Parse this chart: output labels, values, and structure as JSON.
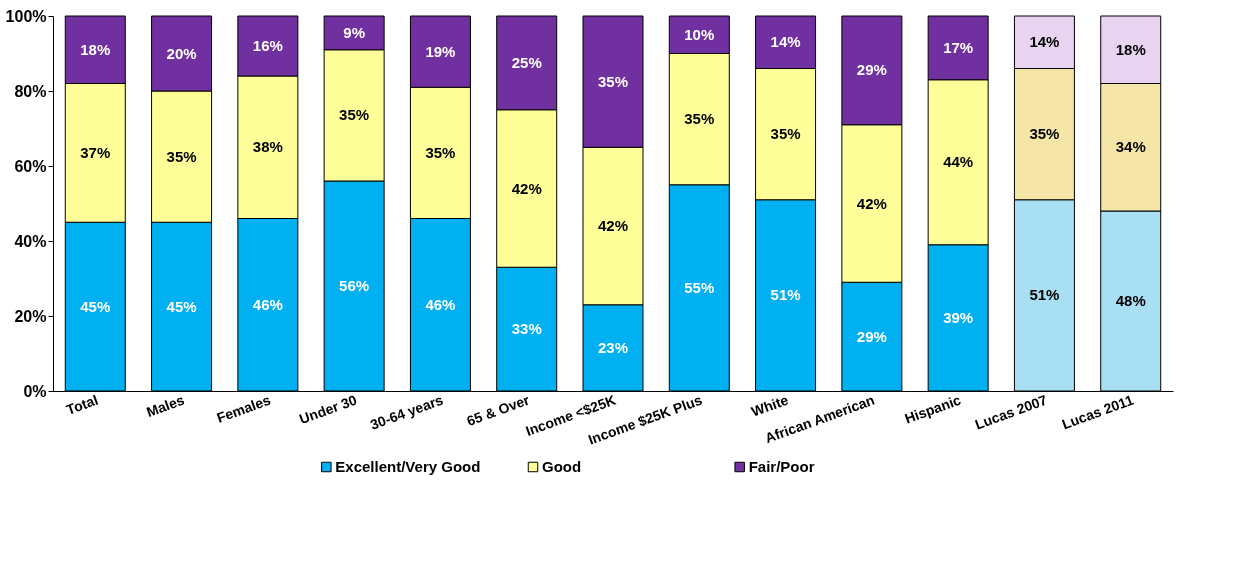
{
  "chart_data": {
    "type": "bar",
    "stacked": true,
    "grid": false,
    "legend": "bottom",
    "categories": [
      "Total",
      "Males",
      "Females",
      "Under 30",
      "30-64 years",
      "65 & Over",
      "Income <$25K",
      "Income $25K Plus",
      "White",
      "African American",
      "Hispanic",
      "Lucas 2007",
      "Lucas 2011"
    ],
    "ylim": [
      0,
      100
    ],
    "yticks": [
      {
        "value": 0,
        "label": "0%"
      },
      {
        "value": 20,
        "label": "20%"
      },
      {
        "value": 40,
        "label": "40%"
      },
      {
        "value": 60,
        "label": "60%"
      },
      {
        "value": 80,
        "label": "80%"
      },
      {
        "value": 100,
        "label": "100%"
      }
    ],
    "series": [
      {
        "name": "Excellent/Very Good",
        "color": "#00b0f0",
        "colors": [
          "#00b0f0",
          "#00b0f0",
          "#00b0f0",
          "#00b0f0",
          "#00b0f0",
          "#00b0f0",
          "#00b0f0",
          "#00b0f0",
          "#00b0f0",
          "#00b0f0",
          "#00b0f0",
          "#a8dff2",
          "#a8dff2"
        ],
        "values": [
          45,
          45,
          46,
          56,
          46,
          33,
          23,
          55,
          51,
          29,
          39,
          51,
          48
        ],
        "value_labels": [
          "45%",
          "45%",
          "46%",
          "56%",
          "46%",
          "33%",
          "23%",
          "55%",
          "51%",
          "29%",
          "39%",
          "51%",
          "48%"
        ]
      },
      {
        "name": "Good",
        "color": "#ffff99",
        "colors": [
          "#ffff99",
          "#ffff99",
          "#ffff99",
          "#ffff99",
          "#ffff99",
          "#ffff99",
          "#ffff99",
          "#ffff99",
          "#ffff99",
          "#ffff99",
          "#ffff99",
          "#f5e6a8",
          "#f5e6a8"
        ],
        "values": [
          37,
          35,
          38,
          35,
          35,
          42,
          42,
          35,
          35,
          42,
          44,
          35,
          34
        ],
        "value_labels": [
          "37%",
          "35%",
          "38%",
          "35%",
          "35%",
          "42%",
          "42%",
          "35%",
          "35%",
          "42%",
          "44%",
          "35%",
          "34%"
        ]
      },
      {
        "name": "Fair/Poor",
        "color": "#7030a0",
        "colors": [
          "#7030a0",
          "#7030a0",
          "#7030a0",
          "#7030a0",
          "#7030a0",
          "#7030a0",
          "#7030a0",
          "#7030a0",
          "#7030a0",
          "#7030a0",
          "#7030a0",
          "#e8d4f0",
          "#e8d4f0"
        ],
        "values": [
          18,
          20,
          16,
          9,
          19,
          25,
          35,
          10,
          14,
          29,
          17,
          14,
          18
        ],
        "value_labels": [
          "18%",
          "20%",
          "16%",
          "9%",
          "19%",
          "25%",
          "35%",
          "10%",
          "14%",
          "29%",
          "17%",
          "14%",
          "18%"
        ]
      }
    ]
  }
}
